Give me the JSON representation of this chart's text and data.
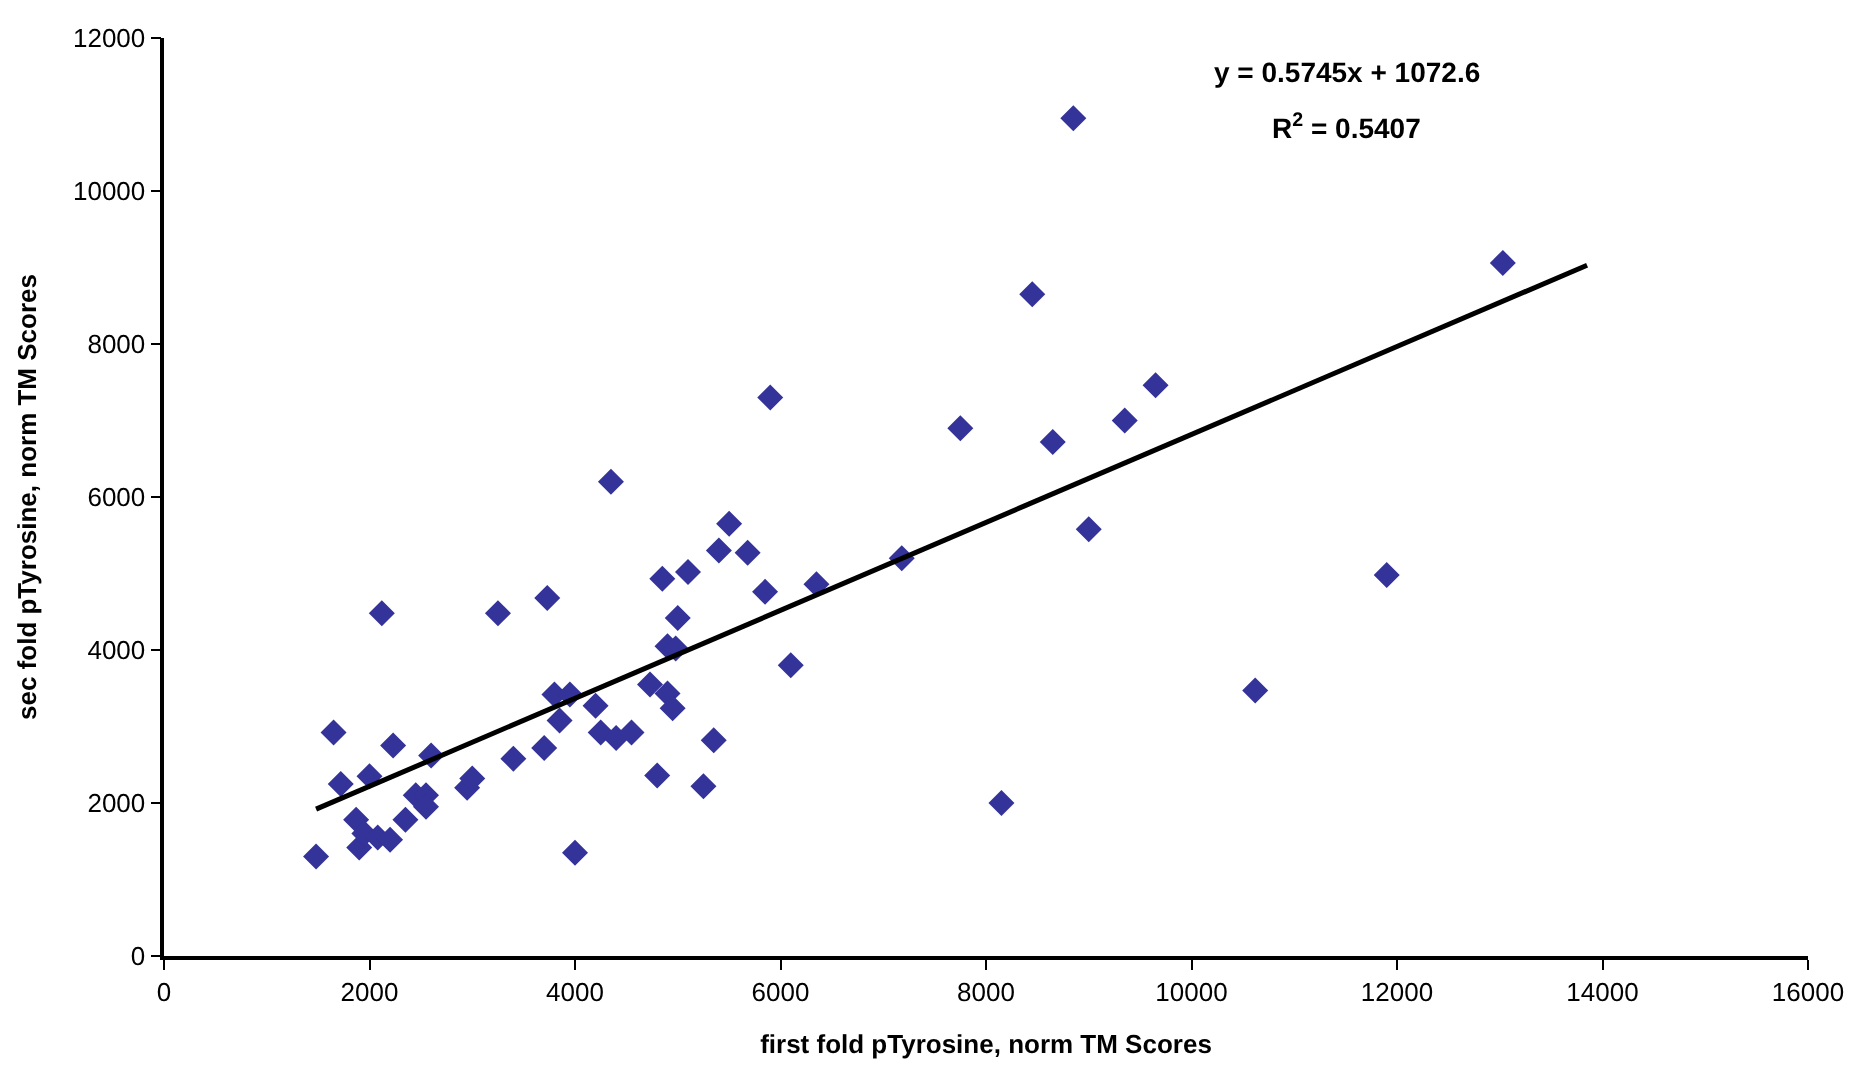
{
  "chart_data": {
    "type": "scatter",
    "xlabel": "first fold pTyrosine, norm TM Scores",
    "ylabel": "sec fold pTyrosine, norm TM Scores",
    "xlim": [
      0,
      16000
    ],
    "xticks": [
      0,
      2000,
      4000,
      6000,
      8000,
      10000,
      12000,
      14000,
      16000
    ],
    "ylim": [
      0,
      12000
    ],
    "yticks": [
      0,
      2000,
      4000,
      6000,
      8000,
      10000,
      12000
    ],
    "grid": false,
    "legend": false,
    "annotations": [
      "y = 0.5745x + 1072.6",
      "R$^{2}$ = 0.5407"
    ],
    "series": [
      {
        "marker": "diamond",
        "color": "#333399",
        "x": [
          1480,
          1650,
          1720,
          1870,
          1900,
          1950,
          2000,
          2080,
          2120,
          2200,
          2230,
          2350,
          2450,
          2550,
          2550,
          2600,
          2950,
          3000,
          3250,
          3400,
          3700,
          3730,
          3800,
          3850,
          3950,
          4000,
          4200,
          4250,
          4350,
          4400,
          4550,
          4730,
          4800,
          4850,
          4900,
          4900,
          4950,
          4980,
          5000,
          5100,
          5250,
          5350,
          5400,
          5500,
          5680,
          5850,
          5900,
          6100,
          6350,
          7180,
          7750,
          8150,
          8450,
          8650,
          8850,
          9000,
          9350,
          9650,
          10620,
          11900,
          13030
        ],
        "values": [
          1300,
          2920,
          2250,
          1780,
          1420,
          1600,
          2350,
          1550,
          4480,
          1520,
          2750,
          1780,
          2100,
          2100,
          1950,
          2620,
          2200,
          2320,
          4480,
          2580,
          2720,
          4680,
          3420,
          3080,
          3420,
          1350,
          3270,
          2920,
          6200,
          2850,
          2920,
          3550,
          2360,
          4930,
          3430,
          4050,
          3240,
          4020,
          4420,
          5020,
          2220,
          2820,
          5300,
          5650,
          5270,
          4760,
          7300,
          3800,
          4860,
          5200,
          6900,
          2000,
          8650,
          6720,
          10950,
          5580,
          7000,
          7460,
          3470,
          4980,
          9060
        ]
      },
      {
        "type": "line",
        "color": "#000000",
        "x": [
          1480,
          13850
        ],
        "values": [
          1920,
          9030
        ],
        "marker": "none",
        "line_style": "solid"
      }
    ]
  }
}
